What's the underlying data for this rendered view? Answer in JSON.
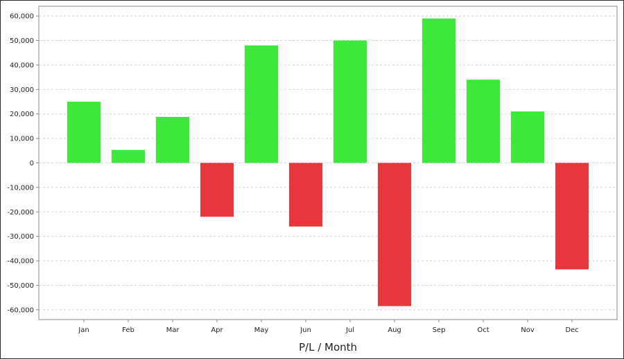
{
  "chart_data": {
    "type": "bar",
    "title": "",
    "xlabel": "P/L / Month",
    "ylabel": "",
    "categories": [
      "Jan",
      "Feb",
      "Mar",
      "Apr",
      "May",
      "Jun",
      "Jul",
      "Aug",
      "Sep",
      "Oct",
      "Nov",
      "Dec"
    ],
    "values": [
      25000,
      5300,
      18800,
      -22000,
      48000,
      -26000,
      50000,
      -58500,
      59000,
      34000,
      21000,
      -43500
    ],
    "ylim": [
      -64000,
      64000
    ],
    "yticks": [
      60000,
      50000,
      40000,
      30000,
      20000,
      10000,
      0,
      -10000,
      -20000,
      -30000,
      -40000,
      -50000,
      -60000
    ],
    "ytick_labels": [
      "60,000",
      "50,000",
      "40,000",
      "30,000",
      "20,000",
      "10,000",
      "0",
      "-10,000",
      "-20,000",
      "-30,000",
      "-40,000",
      "-50,000",
      "-60,000"
    ],
    "grid": true,
    "colors": {
      "positive": "#3de83d",
      "negative": "#e6373c",
      "grid": "#d2d2d2",
      "axis": "#888888"
    }
  }
}
